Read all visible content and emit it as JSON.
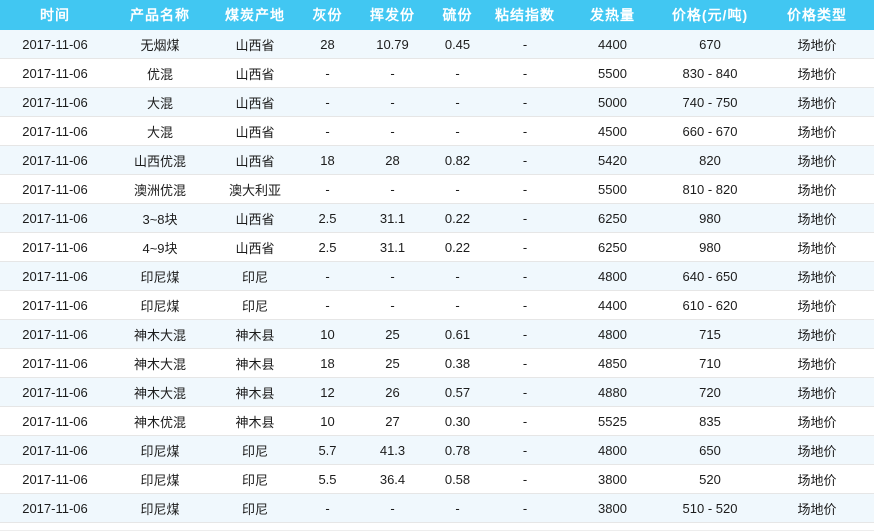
{
  "colors": {
    "header_bg": "#41c7f2",
    "header_text": "#ffffff",
    "stripe_bg": "#f0f8fd",
    "row_border": "#e6e6e6",
    "body_text": "#1c1c1c"
  },
  "table": {
    "headers": [
      "时间",
      "产品名称",
      "煤炭产地",
      "灰份",
      "挥发份",
      "硫份",
      "粘结指数",
      "发热量",
      "价格(元/吨)",
      "价格类型"
    ],
    "rows": [
      [
        "2017-11-06",
        "无烟煤",
        "山西省",
        "28",
        "10.79",
        "0.45",
        "-",
        "4400",
        "670",
        "场地价"
      ],
      [
        "2017-11-06",
        "优混",
        "山西省",
        "-",
        "-",
        "-",
        "-",
        "5500",
        "830 - 840",
        "场地价"
      ],
      [
        "2017-11-06",
        "大混",
        "山西省",
        "-",
        "-",
        "-",
        "-",
        "5000",
        "740 - 750",
        "场地价"
      ],
      [
        "2017-11-06",
        "大混",
        "山西省",
        "-",
        "-",
        "-",
        "-",
        "4500",
        "660 - 670",
        "场地价"
      ],
      [
        "2017-11-06",
        "山西优混",
        "山西省",
        "18",
        "28",
        "0.82",
        "-",
        "5420",
        "820",
        "场地价"
      ],
      [
        "2017-11-06",
        "澳洲优混",
        "澳大利亚",
        "-",
        "-",
        "-",
        "-",
        "5500",
        "810 - 820",
        "场地价"
      ],
      [
        "2017-11-06",
        "3~8块",
        "山西省",
        "2.5",
        "31.1",
        "0.22",
        "-",
        "6250",
        "980",
        "场地价"
      ],
      [
        "2017-11-06",
        "4~9块",
        "山西省",
        "2.5",
        "31.1",
        "0.22",
        "-",
        "6250",
        "980",
        "场地价"
      ],
      [
        "2017-11-06",
        "印尼煤",
        "印尼",
        "-",
        "-",
        "-",
        "-",
        "4800",
        "640 - 650",
        "场地价"
      ],
      [
        "2017-11-06",
        "印尼煤",
        "印尼",
        "-",
        "-",
        "-",
        "-",
        "4400",
        "610 - 620",
        "场地价"
      ],
      [
        "2017-11-06",
        "神木大混",
        "神木县",
        "10",
        "25",
        "0.61",
        "-",
        "4800",
        "715",
        "场地价"
      ],
      [
        "2017-11-06",
        "神木大混",
        "神木县",
        "18",
        "25",
        "0.38",
        "-",
        "4850",
        "710",
        "场地价"
      ],
      [
        "2017-11-06",
        "神木大混",
        "神木县",
        "12",
        "26",
        "0.57",
        "-",
        "4880",
        "720",
        "场地价"
      ],
      [
        "2017-11-06",
        "神木优混",
        "神木县",
        "10",
        "27",
        "0.30",
        "-",
        "5525",
        "835",
        "场地价"
      ],
      [
        "2017-11-06",
        "印尼煤",
        "印尼",
        "5.7",
        "41.3",
        "0.78",
        "-",
        "4800",
        "650",
        "场地价"
      ],
      [
        "2017-11-06",
        "印尼煤",
        "印尼",
        "5.5",
        "36.4",
        "0.58",
        "-",
        "3800",
        "520",
        "场地价"
      ],
      [
        "2017-11-06",
        "印尼煤",
        "印尼",
        "-",
        "-",
        "-",
        "-",
        "3800",
        "510 - 520",
        "场地价"
      ]
    ]
  }
}
